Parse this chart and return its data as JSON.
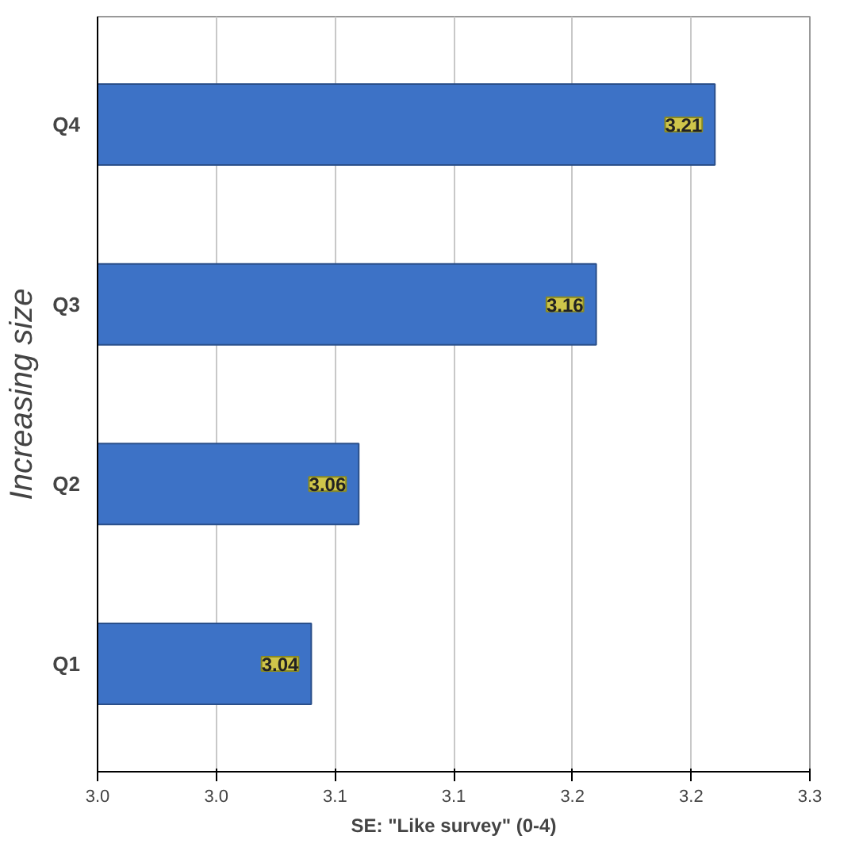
{
  "chart_data": {
    "type": "bar",
    "orientation": "horizontal",
    "categories": [
      "Q4",
      "Q3",
      "Q2",
      "Q1"
    ],
    "values": [
      3.21,
      3.16,
      3.06,
      3.04
    ],
    "color": "#3d72c6",
    "xlabel": "SE: \"Like survey\" (0-4)",
    "ylabel": "Increasing size",
    "xlim": [
      2.95,
      3.25
    ],
    "xticks": [
      {
        "value": 2.95,
        "label": "3.0"
      },
      {
        "value": 3.0,
        "label": "3.0"
      },
      {
        "value": 3.05,
        "label": "3.1"
      },
      {
        "value": 3.1,
        "label": "3.1"
      },
      {
        "value": 3.15,
        "label": "3.2"
      },
      {
        "value": 3.2,
        "label": "3.2"
      },
      {
        "value": 3.25,
        "label": "3.3"
      }
    ],
    "grid": "x",
    "data_labels": true
  }
}
